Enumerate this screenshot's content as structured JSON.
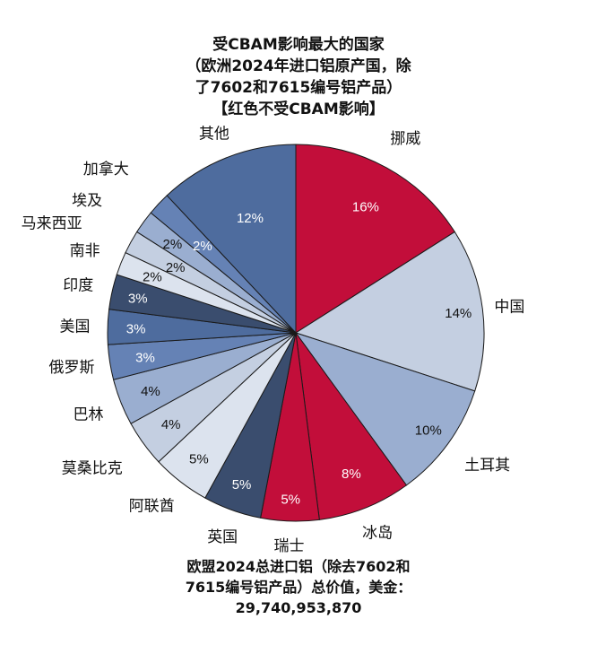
{
  "title_lines": [
    "受CBAM影响最大的国家",
    "（欧洲2024年进口铝原产国，除",
    "了7602和7615编号铝产品）",
    "【红色不受CBAM影响】"
  ],
  "footer_lines": [
    "欧盟2024总进口铝（除去7602和",
    "7615编号铝产品）总价值，美金：",
    "29,740,953,870"
  ],
  "chart_data": {
    "type": "pie",
    "title": "受CBAM影响最大的国家（欧洲2024年进口铝原产国，除了7602和7615编号铝产品）【红色不受CBAM影响】",
    "legend": "labels outside slices",
    "note": "红色不受CBAM影响",
    "total_value_usd": "29,740,953,870",
    "slices": [
      {
        "label": "挪威",
        "value": 16,
        "value_label": "16%",
        "color": "#C20E3A"
      },
      {
        "label": "中国",
        "value": 14,
        "value_label": "14%",
        "color": "#C4CFE1"
      },
      {
        "label": "土耳其",
        "value": 10,
        "value_label": "10%",
        "color": "#9AAED0"
      },
      {
        "label": "冰岛",
        "value": 8,
        "value_label": "8%",
        "color": "#C20E3A"
      },
      {
        "label": "瑞士",
        "value": 5,
        "value_label": "5%",
        "color": "#C20E3A"
      },
      {
        "label": "英国",
        "value": 5,
        "value_label": "5%",
        "color": "#3A4D6E"
      },
      {
        "label": "阿联酋",
        "value": 5,
        "value_label": "5%",
        "color": "#DCE3EE"
      },
      {
        "label": "莫桑比克",
        "value": 4,
        "value_label": "4%",
        "color": "#C4CFE1"
      },
      {
        "label": "巴林",
        "value": 4,
        "value_label": "4%",
        "color": "#9AAED0"
      },
      {
        "label": "俄罗斯",
        "value": 3,
        "value_label": "3%",
        "color": "#6582B5"
      },
      {
        "label": "美国",
        "value": 3,
        "value_label": "3%",
        "color": "#4E6C9E"
      },
      {
        "label": "印度",
        "value": 3,
        "value_label": "3%",
        "color": "#3A4D6E"
      },
      {
        "label": "南非",
        "value": 2,
        "value_label": "2%",
        "color": "#DCE3EE"
      },
      {
        "label": "马来西亚",
        "value": 2,
        "value_label": "2%",
        "color": "#C4CFE1"
      },
      {
        "label": "埃及",
        "value": 2,
        "value_label": "2%",
        "color": "#9AAED0"
      },
      {
        "label": "加拿大",
        "value": 2,
        "value_label": "2%",
        "color": "#6582B5"
      },
      {
        "label": "其他",
        "value": 12,
        "value_label": "12%",
        "color": "#4E6C9E"
      }
    ]
  }
}
